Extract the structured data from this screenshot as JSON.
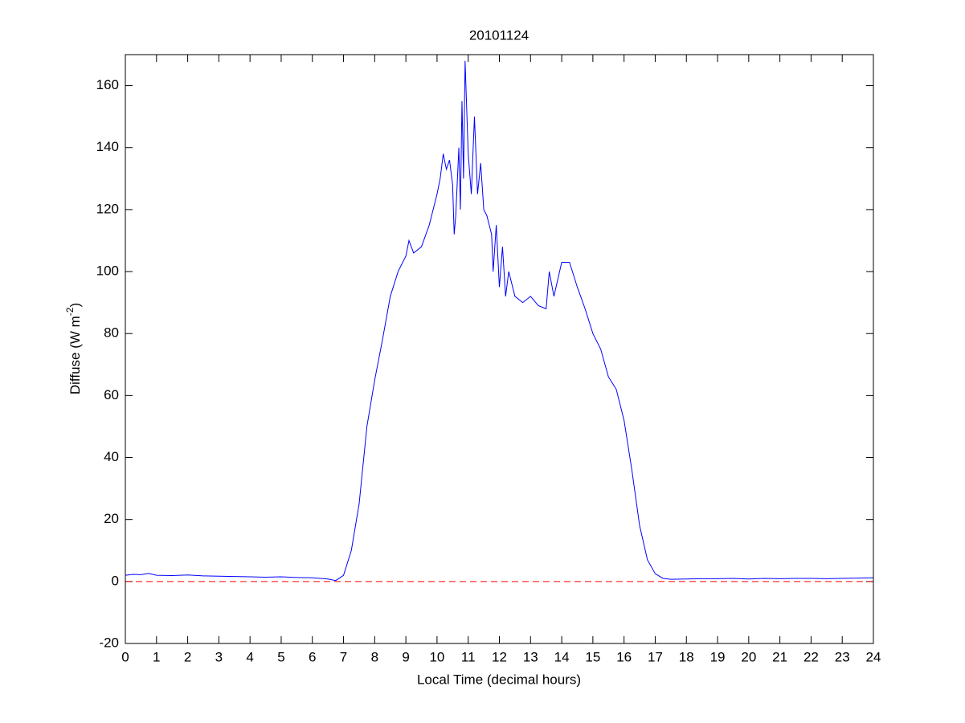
{
  "chart_data": {
    "type": "line",
    "title": "20101124",
    "xlabel": "Local Time (decimal hours)",
    "ylabel": [
      "Diffuse (W m",
      "-2",
      ")"
    ],
    "xlim": [
      0,
      24
    ],
    "ylim": [
      -20,
      170
    ],
    "xticks": [
      0,
      1,
      2,
      3,
      4,
      5,
      6,
      7,
      8,
      9,
      10,
      11,
      12,
      13,
      14,
      15,
      16,
      17,
      18,
      19,
      20,
      21,
      22,
      23,
      24
    ],
    "yticks": [
      -20,
      0,
      20,
      40,
      60,
      80,
      100,
      120,
      140,
      160
    ],
    "reference_line": {
      "value": 0,
      "color": "#ff0000",
      "style": "dashed"
    },
    "grid": false,
    "series": [
      {
        "color": "#0000ff",
        "x": [
          0,
          0.25,
          0.5,
          0.75,
          1,
          1.5,
          2,
          2.5,
          3,
          3.5,
          4,
          4.5,
          5,
          5.5,
          6,
          6.5,
          6.75,
          7,
          7.25,
          7.5,
          7.75,
          8,
          8.25,
          8.5,
          8.75,
          9,
          9.1,
          9.25,
          9.5,
          9.75,
          10,
          10.1,
          10.2,
          10.3,
          10.4,
          10.5,
          10.55,
          10.6,
          10.7,
          10.75,
          10.8,
          10.85,
          10.9,
          11,
          11.1,
          11.2,
          11.3,
          11.4,
          11.5,
          11.6,
          11.75,
          11.8,
          11.9,
          12,
          12.1,
          12.2,
          12.3,
          12.5,
          12.75,
          13,
          13.25,
          13.5,
          13.6,
          13.75,
          14,
          14.25,
          14.5,
          14.75,
          15,
          15.25,
          15.5,
          15.75,
          16,
          16.25,
          16.5,
          16.75,
          17,
          17.25,
          17.5,
          18,
          18.5,
          19,
          19.5,
          20,
          20.5,
          21,
          21.5,
          22,
          22.5,
          23,
          23.5,
          24
        ],
        "values": [
          2,
          2.3,
          2.2,
          2.6,
          2,
          1.9,
          2.1,
          1.8,
          1.7,
          1.6,
          1.5,
          1.4,
          1.5,
          1.3,
          1.2,
          0.8,
          0.3,
          2,
          10,
          25,
          50,
          65,
          78,
          92,
          100,
          105,
          110,
          106,
          108,
          115,
          125,
          130,
          138,
          133,
          136,
          128,
          112,
          118,
          140,
          120,
          155,
          130,
          168,
          138,
          125,
          150,
          125,
          135,
          120,
          118,
          112,
          100,
          115,
          95,
          108,
          92,
          100,
          92,
          90,
          92,
          89,
          88,
          100,
          92,
          103,
          103,
          95,
          88,
          80,
          75,
          66,
          62,
          52,
          36,
          18,
          7,
          2.5,
          1,
          0.7,
          0.8,
          0.9,
          0.9,
          1,
          0.8,
          1,
          0.9,
          1,
          1,
          0.9,
          1,
          1.1,
          1.2
        ]
      }
    ]
  }
}
